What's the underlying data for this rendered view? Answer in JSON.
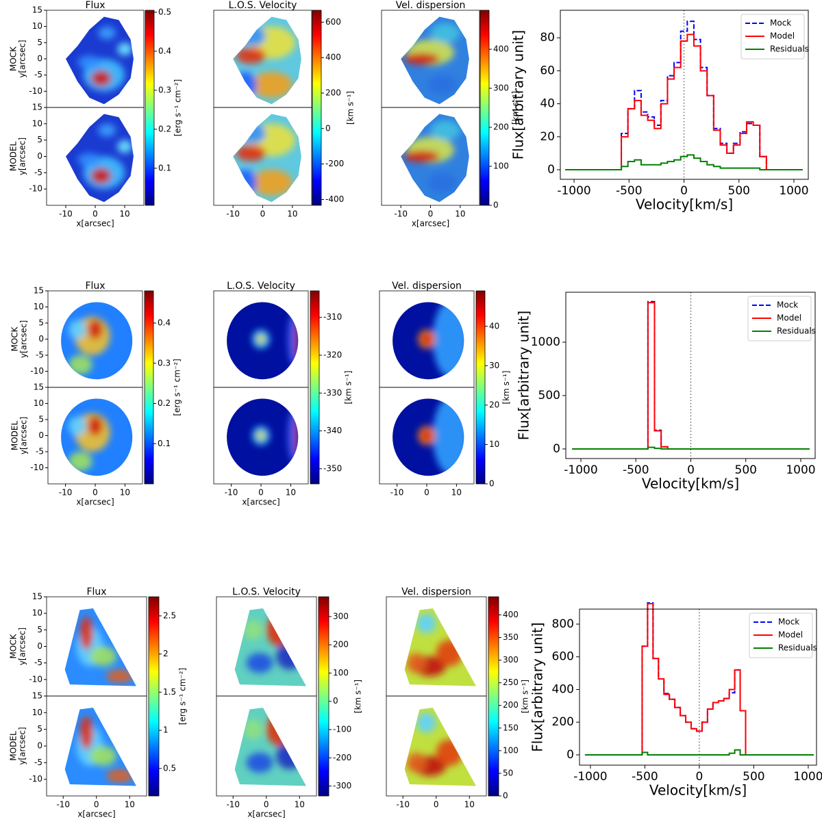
{
  "chart_data": [
    {
      "type": "map",
      "title": "Flux",
      "panel_labels": [
        "MOCK",
        "MODEL"
      ],
      "ylabel": "y[arcsec]",
      "xlabel": "x[arcsec]",
      "xlim": [
        -16.5,
        16.5
      ],
      "ylim": [
        -15,
        15
      ],
      "xticks": [
        -10,
        0,
        10
      ],
      "yticks": [
        -10,
        -5,
        0,
        5,
        10,
        15
      ],
      "colorbar_label": "[erg s⁻¹ cm⁻²]",
      "clim": [
        0.005,
        0.505
      ],
      "cticks": [
        0.1,
        0.2,
        0.3,
        0.4,
        0.5
      ]
    },
    {
      "type": "map",
      "title": "L.O.S. Velocity",
      "xlim": [
        -16.5,
        16.5
      ],
      "ylim": [
        -15,
        15
      ],
      "xticks": [
        -10,
        0,
        10
      ],
      "colorbar_label": "[km s⁻¹]",
      "clim": [
        -433,
        667
      ],
      "cticks": [
        -400,
        -200,
        0,
        200,
        400,
        600
      ]
    },
    {
      "type": "map",
      "title": "Vel. dispersion",
      "xlabel": "x[arcsec]",
      "xlim": [
        -16.5,
        16.5
      ],
      "ylim": [
        -15,
        15
      ],
      "xticks": [
        -10,
        0,
        10
      ],
      "colorbar_label": "[km s⁻¹]",
      "clim": [
        0,
        500
      ],
      "cticks": [
        0,
        100,
        200,
        300,
        400
      ]
    },
    {
      "type": "line",
      "xlabel": "Velocity[km/s]",
      "ylabel": "Flux[arbitrary unit]",
      "xlim": [
        -1125,
        1131
      ],
      "ylim": [
        -5.8,
        96.7
      ],
      "xticks": [
        -1000,
        -500,
        0,
        500,
        1000
      ],
      "yticks": [
        0,
        20,
        40,
        60,
        80
      ],
      "vline": 0,
      "legend": "upper right",
      "step": "mid",
      "x": [
        -1080,
        -1020,
        -960,
        -900,
        -840,
        -780,
        -720,
        -660,
        -600,
        -540,
        -480,
        -420,
        -360,
        -300,
        -240,
        -180,
        -120,
        -60,
        0,
        60,
        120,
        180,
        240,
        300,
        360,
        420,
        480,
        540,
        600,
        660,
        720,
        780,
        840,
        900,
        960,
        1020,
        1080
      ],
      "series": [
        {
          "name": "Mock",
          "color": "#0000ff",
          "dash": true,
          "values": [
            0,
            0,
            0,
            0,
            0,
            0,
            0,
            0,
            0,
            22,
            37,
            48,
            35,
            32,
            27,
            42,
            57,
            65,
            84,
            90,
            79,
            62,
            45,
            25,
            16,
            10,
            16,
            23,
            28,
            27,
            8,
            0,
            0,
            0,
            0,
            0,
            0
          ]
        },
        {
          "name": "Model",
          "color": "#ff0000",
          "values": [
            0,
            0,
            0,
            0,
            0,
            0,
            0,
            0,
            0,
            20,
            37,
            42,
            33,
            30,
            25,
            40,
            55,
            62,
            78,
            82,
            75,
            60,
            45,
            24,
            15,
            10,
            15,
            22,
            29,
            27,
            8,
            0,
            0,
            0,
            0,
            0,
            0
          ]
        },
        {
          "name": "Residuals",
          "color": "#008000",
          "values": [
            0,
            0,
            0,
            0,
            0,
            0,
            0,
            0,
            0,
            2,
            5,
            6,
            3,
            3,
            3,
            4,
            5,
            6,
            8,
            9,
            7,
            5,
            3,
            2,
            1,
            1,
            1,
            1,
            1,
            1,
            0,
            0,
            0,
            0,
            0,
            0,
            0
          ]
        }
      ]
    },
    {
      "type": "map",
      "title": "Flux",
      "panel_labels": [
        "MOCK",
        "MODEL"
      ],
      "ylabel": "y[arcsec]",
      "xlabel": "x[arcsec]",
      "xlim": [
        -15.9,
        15.9
      ],
      "ylim": [
        -15,
        15
      ],
      "xticks": [
        -10,
        0,
        10
      ],
      "yticks": [
        -10,
        -5,
        0,
        5,
        10,
        15
      ],
      "colorbar_label": "[erg s⁻¹ cm⁻²]",
      "clim": [
        0,
        0.48
      ],
      "cticks": [
        0.1,
        0.2,
        0.3,
        0.4
      ]
    },
    {
      "type": "map",
      "title": "L.O.S. Velocity",
      "xlabel": "x[arcsec]",
      "xlim": [
        -15.9,
        15.9
      ],
      "ylim": [
        -15,
        15
      ],
      "xticks": [
        -10,
        0,
        10
      ],
      "colorbar_label": "[km s⁻¹]",
      "clim": [
        -354,
        -303
      ],
      "cticks": [
        -350,
        -340,
        -330,
        -320,
        -310
      ]
    },
    {
      "type": "map",
      "title": "Vel. dispersion",
      "xlim": [
        -15.9,
        15.9
      ],
      "ylim": [
        -15,
        15
      ],
      "xticks": [
        -10,
        0,
        10
      ],
      "colorbar_label": "[km s⁻¹]",
      "clim": [
        0,
        49
      ],
      "cticks": [
        0,
        10,
        20,
        30,
        40
      ]
    },
    {
      "type": "line",
      "xlabel": "Velocity[km/s]",
      "ylabel": "Flux[arbitrary unit]",
      "xlim": [
        -1137,
        1131
      ],
      "ylim": [
        -90,
        1468
      ],
      "xticks": [
        -1000,
        -500,
        0,
        500,
        1000
      ],
      "yticks": [
        0,
        500,
        1000
      ],
      "vline": 0,
      "legend": "upper right",
      "step": "mid",
      "x": [
        -1080,
        -1020,
        -960,
        -900,
        -840,
        -780,
        -720,
        -660,
        -600,
        -540,
        -480,
        -420,
        -360,
        -300,
        -240,
        -180,
        -120,
        -60,
        0,
        60,
        120,
        180,
        240,
        300,
        360,
        420,
        480,
        540,
        600,
        660,
        720,
        780,
        840,
        900,
        960,
        1020,
        1080
      ],
      "series": [
        {
          "name": "Mock",
          "color": "#0000ff",
          "dash": true,
          "values": [
            0,
            0,
            0,
            0,
            0,
            0,
            0,
            0,
            0,
            0,
            0,
            0,
            1380,
            175,
            20,
            0,
            0,
            0,
            0,
            0,
            0,
            0,
            0,
            0,
            0,
            0,
            0,
            0,
            0,
            0,
            0,
            0,
            0,
            0,
            0,
            0,
            0
          ]
        },
        {
          "name": "Model",
          "color": "#ff0000",
          "values": [
            0,
            0,
            0,
            0,
            0,
            0,
            0,
            0,
            0,
            0,
            0,
            0,
            1370,
            170,
            20,
            0,
            0,
            0,
            0,
            0,
            0,
            0,
            0,
            0,
            0,
            0,
            0,
            0,
            0,
            0,
            0,
            0,
            0,
            0,
            0,
            0,
            0
          ]
        },
        {
          "name": "Residuals",
          "color": "#008000",
          "values": [
            0,
            0,
            0,
            0,
            0,
            0,
            0,
            0,
            0,
            0,
            0,
            0,
            15,
            5,
            0,
            0,
            0,
            0,
            0,
            0,
            0,
            0,
            0,
            0,
            0,
            0,
            0,
            0,
            0,
            0,
            0,
            0,
            0,
            0,
            0,
            0,
            0
          ]
        }
      ]
    },
    {
      "type": "map",
      "title": "Flux",
      "panel_labels": [
        "MOCK",
        "MODEL"
      ],
      "ylabel": "y[arcsec]",
      "xlabel": "x[arcsec]",
      "xlim": [
        -15,
        15.1
      ],
      "ylim": [
        -15,
        15
      ],
      "xticks": [
        -10,
        0,
        10
      ],
      "yticks": [
        -10,
        -5,
        0,
        5,
        10,
        15
      ],
      "colorbar_label": "[erg s⁻¹ cm⁻²]",
      "clim": [
        0.14,
        2.75
      ],
      "cticks": [
        0.5,
        1.0,
        1.5,
        2.0,
        2.5
      ]
    },
    {
      "type": "map",
      "title": "L.O.S. Velocity",
      "xlabel": "x[arcsec]",
      "xlim": [
        -15,
        15.1
      ],
      "ylim": [
        -15,
        15
      ],
      "xticks": [
        -10,
        0,
        10
      ],
      "colorbar_label": "[km s⁻¹]",
      "clim": [
        -335,
        370
      ],
      "cticks": [
        -300,
        -200,
        -100,
        0,
        100,
        200,
        300
      ]
    },
    {
      "type": "map",
      "title": "Vel. dispersion",
      "xlim": [
        -15,
        15.1
      ],
      "ylim": [
        -15,
        15
      ],
      "xticks": [
        -10,
        0,
        10
      ],
      "colorbar_label": "[km s⁻¹]",
      "clim": [
        0,
        440
      ],
      "cticks": [
        0,
        50,
        100,
        150,
        200,
        250,
        300,
        350,
        400
      ]
    },
    {
      "type": "line",
      "xlabel": "Velocity[km/s]",
      "ylabel": "Flux[arbitrary unit]",
      "xlim": [
        -1100,
        1076
      ],
      "ylim": [
        -63,
        892
      ],
      "xticks": [
        -1000,
        -500,
        0,
        500,
        1000
      ],
      "yticks": [
        0,
        200,
        400,
        600,
        800
      ],
      "vline": 0,
      "legend": "upper right",
      "step": "mid",
      "x": [
        -1050,
        -1000,
        -950,
        -900,
        -850,
        -800,
        -750,
        -700,
        -650,
        -600,
        -550,
        -500,
        -450,
        -400,
        -350,
        -300,
        -250,
        -200,
        -150,
        -100,
        -50,
        0,
        50,
        100,
        150,
        200,
        250,
        300,
        350,
        400,
        450,
        500,
        550,
        600,
        650,
        700,
        750,
        800,
        850,
        900,
        950,
        1000,
        1050
      ],
      "series": [
        {
          "name": "Mock",
          "color": "#0000ff",
          "dash": true,
          "values": [
            0,
            0,
            0,
            0,
            0,
            0,
            0,
            0,
            0,
            0,
            0,
            665,
            930,
            590,
            465,
            375,
            340,
            290,
            240,
            200,
            160,
            145,
            200,
            280,
            320,
            330,
            345,
            380,
            520,
            270,
            0,
            0,
            0,
            0,
            0,
            0,
            0,
            0,
            0,
            0,
            0,
            0,
            0
          ]
        },
        {
          "name": "Model",
          "color": "#ff0000",
          "values": [
            0,
            0,
            0,
            0,
            0,
            0,
            0,
            0,
            0,
            0,
            0,
            665,
            925,
            590,
            465,
            370,
            340,
            290,
            240,
            200,
            160,
            145,
            200,
            280,
            320,
            330,
            345,
            400,
            520,
            270,
            0,
            0,
            0,
            0,
            0,
            0,
            0,
            0,
            0,
            0,
            0,
            0,
            0
          ]
        },
        {
          "name": "Residuals",
          "color": "#008000",
          "values": [
            0,
            0,
            0,
            0,
            0,
            0,
            0,
            0,
            0,
            0,
            0,
            15,
            0,
            0,
            0,
            0,
            0,
            0,
            0,
            0,
            0,
            0,
            0,
            0,
            0,
            0,
            0,
            10,
            30,
            0,
            0,
            0,
            0,
            0,
            0,
            0,
            0,
            0,
            0,
            0,
            0,
            0,
            0
          ]
        }
      ]
    }
  ]
}
